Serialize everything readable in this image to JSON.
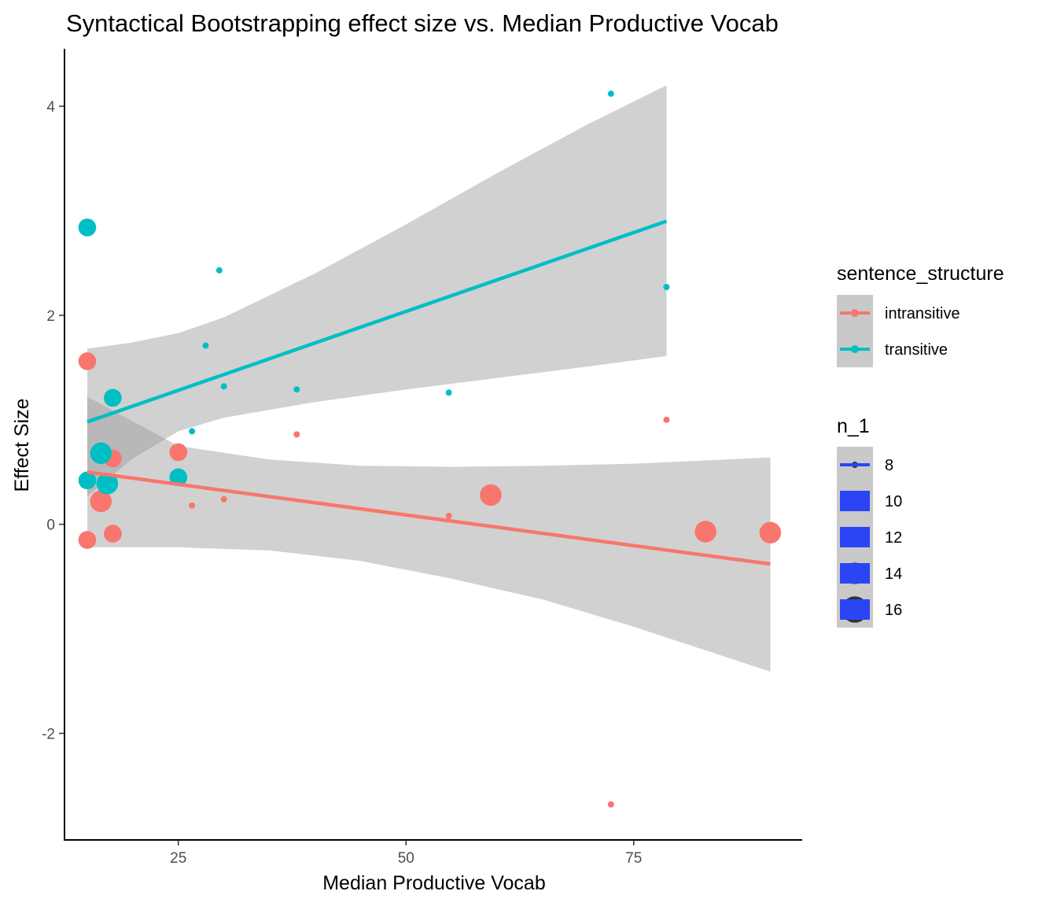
{
  "chart_data": {
    "type": "scatter",
    "title": "Syntactical Bootstrapping effect size vs. Median Productive Vocab",
    "xlabel": "Median Productive Vocab",
    "ylabel": "Effect Size",
    "xlim": [
      12.5,
      93.5
    ],
    "ylim": [
      -3.02,
      4.55
    ],
    "x_ticks": [
      25,
      50,
      75
    ],
    "y_ticks": [
      -2,
      0,
      2,
      4
    ],
    "x_tick_labels": [
      "25",
      "50",
      "75"
    ],
    "y_tick_labels": [
      "-2",
      "0",
      "2",
      "4"
    ],
    "grid": false,
    "legend_position": "right",
    "colors": {
      "intransitive": "#F8766D",
      "transitive": "#00BFC4",
      "ribbon": "#999999",
      "size_key": "#2B45F5"
    },
    "legend": {
      "color": {
        "title": "sentence_structure",
        "entries": [
          "intransitive",
          "transitive"
        ]
      },
      "size": {
        "title": "n_1",
        "entries": [
          "8",
          "10",
          "12",
          "14",
          "16"
        ]
      }
    },
    "series": [
      {
        "name": "intransitive",
        "points": [
          {
            "x": 15.0,
            "y": 1.56,
            "n": 14
          },
          {
            "x": 17.8,
            "y": 0.63,
            "n": 14
          },
          {
            "x": 16.5,
            "y": 0.22,
            "n": 16
          },
          {
            "x": 15.0,
            "y": -0.15,
            "n": 14
          },
          {
            "x": 17.8,
            "y": -0.09,
            "n": 14
          },
          {
            "x": 25.0,
            "y": 0.69,
            "n": 14
          },
          {
            "x": 26.5,
            "y": 0.18,
            "n": 8
          },
          {
            "x": 30.0,
            "y": 0.24,
            "n": 8
          },
          {
            "x": 38.0,
            "y": 0.86,
            "n": 8
          },
          {
            "x": 54.7,
            "y": 0.08,
            "n": 8
          },
          {
            "x": 59.3,
            "y": 0.28,
            "n": 16
          },
          {
            "x": 72.5,
            "y": -2.68,
            "n": 8
          },
          {
            "x": 78.6,
            "y": 1.0,
            "n": 8
          },
          {
            "x": 82.9,
            "y": -0.07,
            "n": 16
          },
          {
            "x": 90.0,
            "y": -0.08,
            "n": 16
          }
        ],
        "fit": {
          "x0": 15.0,
          "y0": 0.5,
          "x1": 90.0,
          "y1": -0.38
        },
        "ribbon": {
          "x": [
            15,
            25,
            35,
            45,
            55,
            65,
            75,
            90
          ],
          "upper": [
            1.22,
            0.75,
            0.62,
            0.56,
            0.55,
            0.56,
            0.58,
            0.64
          ],
          "lower": [
            -0.22,
            -0.22,
            -0.25,
            -0.35,
            -0.52,
            -0.72,
            -0.98,
            -1.41
          ]
        }
      },
      {
        "name": "transitive",
        "points": [
          {
            "x": 15.0,
            "y": 2.84,
            "n": 14
          },
          {
            "x": 17.8,
            "y": 1.21,
            "n": 14
          },
          {
            "x": 16.5,
            "y": 0.68,
            "n": 16
          },
          {
            "x": 17.2,
            "y": 0.39,
            "n": 16
          },
          {
            "x": 15.0,
            "y": 0.42,
            "n": 14
          },
          {
            "x": 25.0,
            "y": 0.45,
            "n": 14
          },
          {
            "x": 26.5,
            "y": 0.89,
            "n": 8
          },
          {
            "x": 28.0,
            "y": 1.71,
            "n": 8
          },
          {
            "x": 29.5,
            "y": 2.43,
            "n": 8
          },
          {
            "x": 30.0,
            "y": 1.32,
            "n": 8
          },
          {
            "x": 38.0,
            "y": 1.29,
            "n": 8
          },
          {
            "x": 54.7,
            "y": 1.26,
            "n": 8
          },
          {
            "x": 72.5,
            "y": 4.12,
            "n": 8
          },
          {
            "x": 78.6,
            "y": 2.27,
            "n": 8
          }
        ],
        "fit": {
          "x0": 15.0,
          "y0": 0.98,
          "x1": 78.6,
          "y1": 2.9
        },
        "ribbon": {
          "x": [
            15,
            20,
            25,
            30,
            40,
            50,
            60,
            70,
            78.6
          ],
          "upper": [
            1.68,
            1.74,
            1.83,
            1.98,
            2.4,
            2.87,
            3.36,
            3.83,
            4.2
          ],
          "lower": [
            0.27,
            0.63,
            0.89,
            1.02,
            1.17,
            1.29,
            1.4,
            1.51,
            1.61
          ]
        }
      }
    ]
  }
}
